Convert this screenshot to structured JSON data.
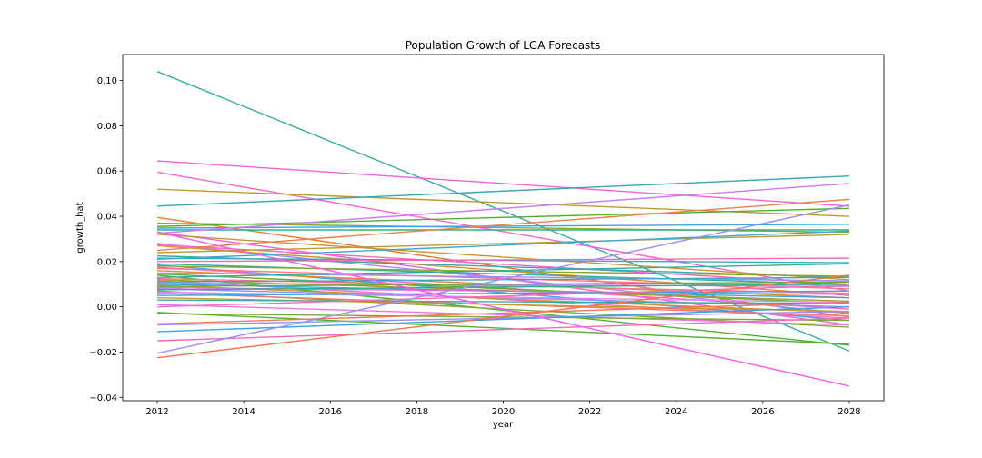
{
  "chart_data": {
    "type": "line",
    "title": "Population Growth of LGA Forecasts",
    "xlabel": "year",
    "ylabel": "growth_hat",
    "xlim": [
      2011.2,
      2028.8
    ],
    "ylim": [
      -0.0415,
      0.1115
    ],
    "xticks": [
      2012,
      2014,
      2016,
      2018,
      2020,
      2022,
      2024,
      2026,
      2028
    ],
    "yticks": [
      -0.04,
      -0.02,
      0.0,
      0.02,
      0.04,
      0.06,
      0.08,
      0.1
    ],
    "ytick_labels": [
      "−0.04",
      "−0.02",
      "0.00",
      "0.02",
      "0.04",
      "0.06",
      "0.08",
      "0.10"
    ],
    "grid": false,
    "legend": "none",
    "x": [
      2012,
      2028
    ],
    "series": [
      {
        "values": [
          0.104,
          -0.0195
        ],
        "color": "#36ada4"
      },
      {
        "values": [
          0.0645,
          0.0445
        ],
        "color": "#f561dd"
      },
      {
        "values": [
          0.0595,
          0.007
        ],
        "color": "#f564d4"
      },
      {
        "values": [
          0.052,
          0.04
        ],
        "color": "#bb9832"
      },
      {
        "values": [
          0.0445,
          0.0578
        ],
        "color": "#39a7ae"
      },
      {
        "values": [
          0.0395,
          -0.0045
        ],
        "color": "#f37932"
      },
      {
        "values": [
          0.037,
          0.033
        ],
        "color": "#96a331"
      },
      {
        "values": [
          0.0355,
          0.0435
        ],
        "color": "#50b131"
      },
      {
        "values": [
          0.0348,
          0.0365
        ],
        "color": "#3ba3ec"
      },
      {
        "values": [
          0.034,
          0.034
        ],
        "color": "#34af87"
      },
      {
        "values": [
          0.033,
          -0.008
        ],
        "color": "#f461dd"
      },
      {
        "values": [
          0.0325,
          0.0545
        ],
        "color": "#cc7af4"
      },
      {
        "values": [
          0.032,
          0.012
        ],
        "color": "#c59433"
      },
      {
        "values": [
          0.028,
          -0.003
        ],
        "color": "#a48cf4"
      },
      {
        "values": [
          0.0275,
          0.01
        ],
        "color": "#f668c2"
      },
      {
        "values": [
          0.027,
          0.005
        ],
        "color": "#e48831"
      },
      {
        "values": [
          0.025,
          0.0475
        ],
        "color": "#f0804a"
      },
      {
        "values": [
          0.024,
          0.032
        ],
        "color": "#b99b31"
      },
      {
        "values": [
          0.0225,
          0.013
        ],
        "color": "#36ab9f"
      },
      {
        "values": [
          0.0215,
          0.0195
        ],
        "color": "#38a9c5"
      },
      {
        "values": [
          0.021,
          0.0335
        ],
        "color": "#3aa8d3"
      },
      {
        "values": [
          0.02,
          0.0215
        ],
        "color": "#f36cb3"
      },
      {
        "values": [
          0.019,
          0.01
        ],
        "color": "#35ae92"
      },
      {
        "values": [
          0.0185,
          -0.006
        ],
        "color": "#3ba3e8"
      },
      {
        "values": [
          0.018,
          0.0135
        ],
        "color": "#8aa631"
      },
      {
        "values": [
          0.0175,
          -0.001
        ],
        "color": "#f66bc0"
      },
      {
        "values": [
          0.017,
          0.008
        ],
        "color": "#f77189"
      },
      {
        "values": [
          0.016,
          0.004
        ],
        "color": "#e18b31"
      },
      {
        "values": [
          0.015,
          0.0115
        ],
        "color": "#9f8ef4"
      },
      {
        "values": [
          0.0145,
          0.0015
        ],
        "color": "#5faf31"
      },
      {
        "values": [
          0.014,
          -0.017
        ],
        "color": "#4fb131"
      },
      {
        "values": [
          0.013,
          0.019
        ],
        "color": "#35ad9a"
      },
      {
        "values": [
          0.0125,
          0.006
        ],
        "color": "#f67697"
      },
      {
        "values": [
          0.012,
          0.0025
        ],
        "color": "#a09d31"
      },
      {
        "values": [
          0.0115,
          -0.005
        ],
        "color": "#f26fcb"
      },
      {
        "values": [
          0.011,
          0.013
        ],
        "color": "#39a8bd"
      },
      {
        "values": [
          0.0105,
          0.009
        ],
        "color": "#c185f4"
      },
      {
        "values": [
          0.01,
          0.004
        ],
        "color": "#3aa5dc"
      },
      {
        "values": [
          0.0095,
          -0.0025
        ],
        "color": "#d49032"
      },
      {
        "values": [
          0.009,
          0.011
        ],
        "color": "#6faa31"
      },
      {
        "values": [
          0.0085,
          0.0055
        ],
        "color": "#f463d8"
      },
      {
        "values": [
          0.008,
          0.0
        ],
        "color": "#8c92f4"
      },
      {
        "values": [
          0.0075,
          0.01
        ],
        "color": "#34ae8e"
      },
      {
        "values": [
          0.007,
          -0.009
        ],
        "color": "#82a931"
      },
      {
        "values": [
          0.0065,
          0.002
        ],
        "color": "#e485f4"
      },
      {
        "values": [
          0.006,
          -0.004
        ],
        "color": "#f37a6b"
      },
      {
        "values": [
          0.005,
          0.007
        ],
        "color": "#3ba4e4"
      },
      {
        "values": [
          0.004,
          -0.002
        ],
        "color": "#c79a32"
      },
      {
        "values": [
          0.003,
          0.0015
        ],
        "color": "#36ada6"
      },
      {
        "values": [
          0.001,
          -0.008
        ],
        "color": "#e974f0"
      },
      {
        "values": [
          0.0,
          0.0095
        ],
        "color": "#f26fb3"
      },
      {
        "values": [
          -0.0025,
          -0.0165
        ],
        "color": "#53b131"
      },
      {
        "values": [
          -0.003,
          -0.006
        ],
        "color": "#7aa931"
      },
      {
        "values": [
          -0.0075,
          0.002
        ],
        "color": "#f0775a"
      },
      {
        "values": [
          -0.008,
          -0.002
        ],
        "color": "#9b8ff4"
      },
      {
        "values": [
          -0.011,
          0.0
        ],
        "color": "#3aa5df"
      },
      {
        "values": [
          -0.015,
          -0.005
        ],
        "color": "#f56ab7"
      },
      {
        "values": [
          -0.0205,
          0.045
        ],
        "color": "#9d8ff4"
      },
      {
        "values": [
          -0.0225,
          0.014
        ],
        "color": "#f7714a"
      },
      {
        "values": [
          0.033,
          -0.035
        ],
        "color": "#f55cec"
      }
    ]
  }
}
